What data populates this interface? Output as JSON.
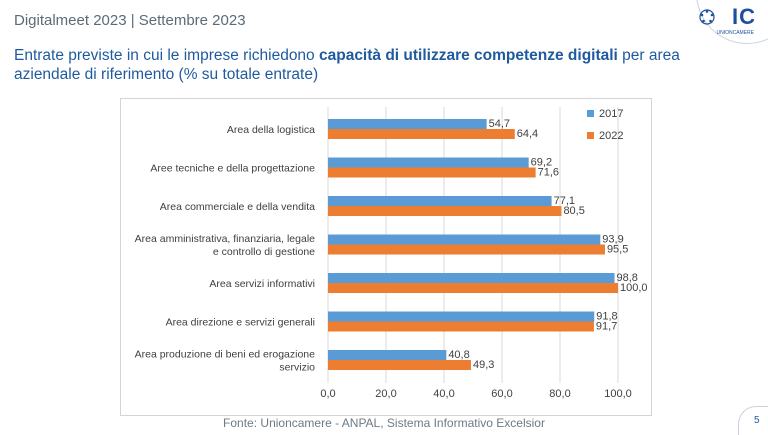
{
  "header": {
    "title": "Digitalmeet 2023 | Settembre 2023",
    "logo_text": "IC",
    "logo_subtext": "UNIONCAMERE"
  },
  "subtitle": {
    "part1": "Entrate previste in cui le imprese richiedono ",
    "bold": "capacità di utilizzare competenze digitali",
    "part2": " per area aziendale di riferimento (% su totale entrate)"
  },
  "source": "Fonte: Unioncamere - ANPAL, Sistema Informativo Excelsior",
  "page_number": "5",
  "colors": {
    "series_2017": "#5b9bd5",
    "series_2022": "#ed7d31",
    "gridline": "#d9d9d9",
    "text": "#404040"
  },
  "chart_data": {
    "type": "bar",
    "orientation": "horizontal",
    "categories": [
      [
        "Area della logistica"
      ],
      [
        "Aree tecniche e della progettazione"
      ],
      [
        "Area commerciale e della vendita"
      ],
      [
        "Area amministrativa, finanziaria, legale",
        "e controllo di gestione"
      ],
      [
        "Area servizi informativi"
      ],
      [
        "Area direzione e servizi generali"
      ],
      [
        "Area produzione di beni ed erogazione",
        "servizio"
      ]
    ],
    "series": [
      {
        "name": "2017",
        "values": [
          54.7,
          69.2,
          77.1,
          93.9,
          98.8,
          91.8,
          40.8
        ],
        "labels": [
          "54,7",
          "69,2",
          "77,1",
          "93,9",
          "98,8",
          "91,8",
          "40,8"
        ]
      },
      {
        "name": "2022",
        "values": [
          64.4,
          71.6,
          80.5,
          95.5,
          100.0,
          91.7,
          49.3
        ],
        "labels": [
          "64,4",
          "71,6",
          "80,5",
          "95,5",
          "100,0",
          "91,7",
          "49,3"
        ]
      }
    ],
    "x_ticks": [
      0,
      20,
      40,
      60,
      80,
      100
    ],
    "x_tick_labels": [
      "0,0",
      "20,0",
      "40,0",
      "60,0",
      "80,0",
      "100,0"
    ],
    "xlim": [
      0,
      100
    ],
    "legend_position": "top-right",
    "grid": true
  }
}
